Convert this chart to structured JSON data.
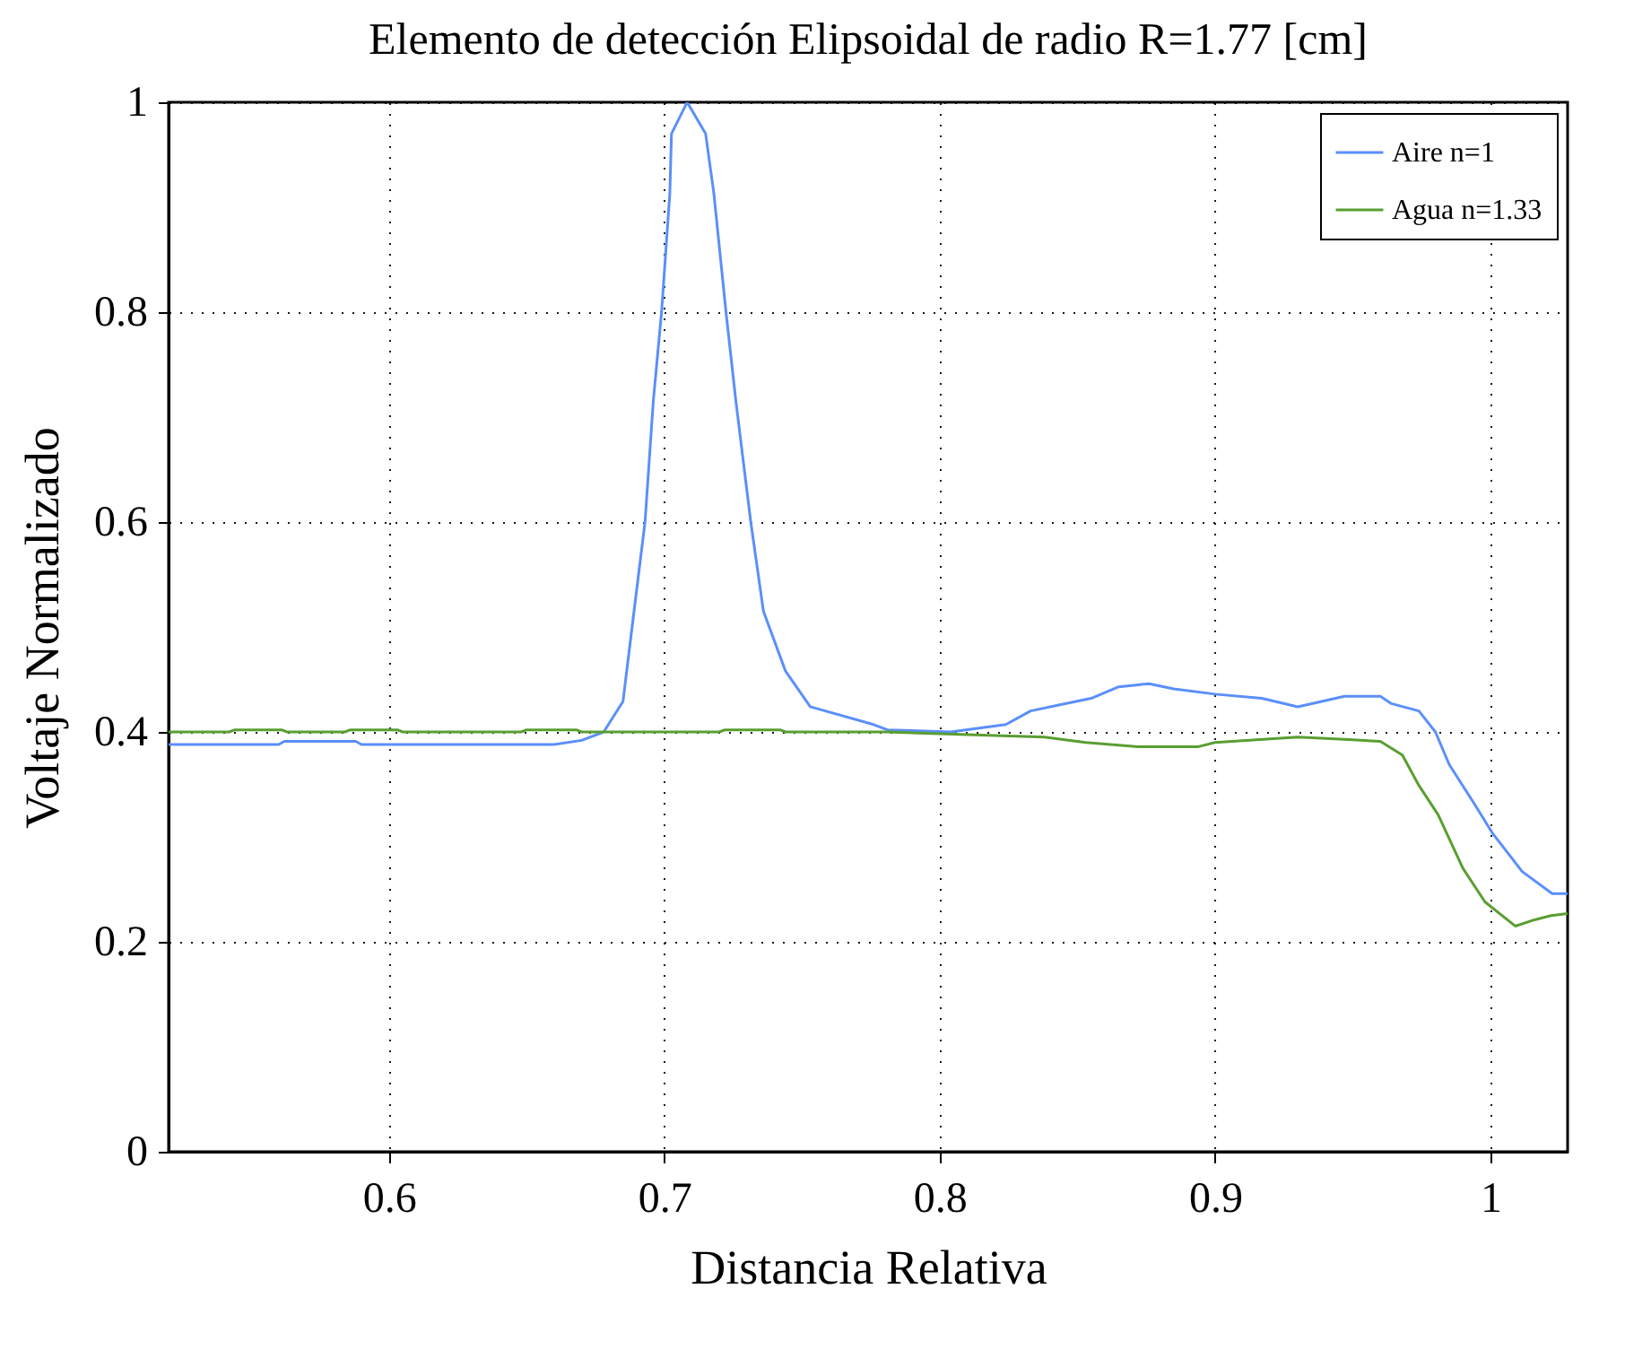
{
  "chart_data": {
    "type": "line",
    "title": "Elemento de detección Elipsoidal de radio R=1.77 [cm]",
    "xlabel": "Distancia Relativa",
    "ylabel": "Voltaje Normalizado",
    "xlim": [
      0.52,
      1.028
    ],
    "ylim": [
      0,
      1.0
    ],
    "xticks": [
      0.6,
      0.7,
      0.8,
      0.9,
      1
    ],
    "yticks": [
      0,
      0.2,
      0.4,
      0.6,
      0.8,
      1
    ],
    "grid": true,
    "legend": "top right",
    "line_style": "solid",
    "marker": "none",
    "series": [
      {
        "name": "Aire n=1",
        "color": "#5b8ff9",
        "x": [
          0.52,
          0.56,
          0.562,
          0.588,
          0.59,
          0.66,
          0.67,
          0.678,
          0.685,
          0.689,
          0.693,
          0.696,
          0.699,
          0.702,
          0.7026,
          0.7083,
          0.715,
          0.718,
          0.7224,
          0.726,
          0.7314,
          0.736,
          0.744,
          0.753,
          0.776,
          0.781,
          0.804,
          0.824,
          0.833,
          0.844,
          0.855,
          0.865,
          0.876,
          0.885,
          0.9,
          0.917,
          0.93,
          0.947,
          0.96,
          0.964,
          0.974,
          0.98,
          0.985,
          0.994,
          1.0006,
          1.0115,
          1.0224,
          1.028
        ],
        "values": [
          0.388,
          0.388,
          0.391,
          0.391,
          0.388,
          0.388,
          0.392,
          0.4,
          0.429,
          0.515,
          0.6,
          0.715,
          0.8,
          0.913,
          0.97,
          1.0,
          0.97,
          0.913,
          0.8,
          0.715,
          0.6,
          0.515,
          0.458,
          0.424,
          0.407,
          0.402,
          0.4,
          0.407,
          0.42,
          0.426,
          0.432,
          0.443,
          0.446,
          0.441,
          0.436,
          0.432,
          0.424,
          0.434,
          0.434,
          0.427,
          0.42,
          0.4,
          0.369,
          0.332,
          0.304,
          0.267,
          0.246,
          0.246
        ]
      },
      {
        "name": "Agua n=1.33",
        "color": "#5a9e32",
        "x": [
          0.52,
          0.542,
          0.544,
          0.561,
          0.563,
          0.584,
          0.586,
          0.603,
          0.605,
          0.648,
          0.65,
          0.668,
          0.67,
          0.72,
          0.722,
          0.742,
          0.744,
          0.781,
          0.838,
          0.853,
          0.872,
          0.894,
          0.9,
          0.93,
          0.947,
          0.96,
          0.968,
          0.974,
          0.981,
          0.99,
          0.998,
          1.009,
          1.016,
          1.022,
          1.028
        ],
        "values": [
          0.4,
          0.4,
          0.402,
          0.402,
          0.4,
          0.4,
          0.402,
          0.402,
          0.4,
          0.4,
          0.402,
          0.402,
          0.4,
          0.4,
          0.402,
          0.402,
          0.4,
          0.4,
          0.395,
          0.39,
          0.386,
          0.386,
          0.39,
          0.395,
          0.393,
          0.391,
          0.378,
          0.349,
          0.321,
          0.27,
          0.238,
          0.215,
          0.221,
          0.225,
          0.227
        ]
      }
    ]
  }
}
